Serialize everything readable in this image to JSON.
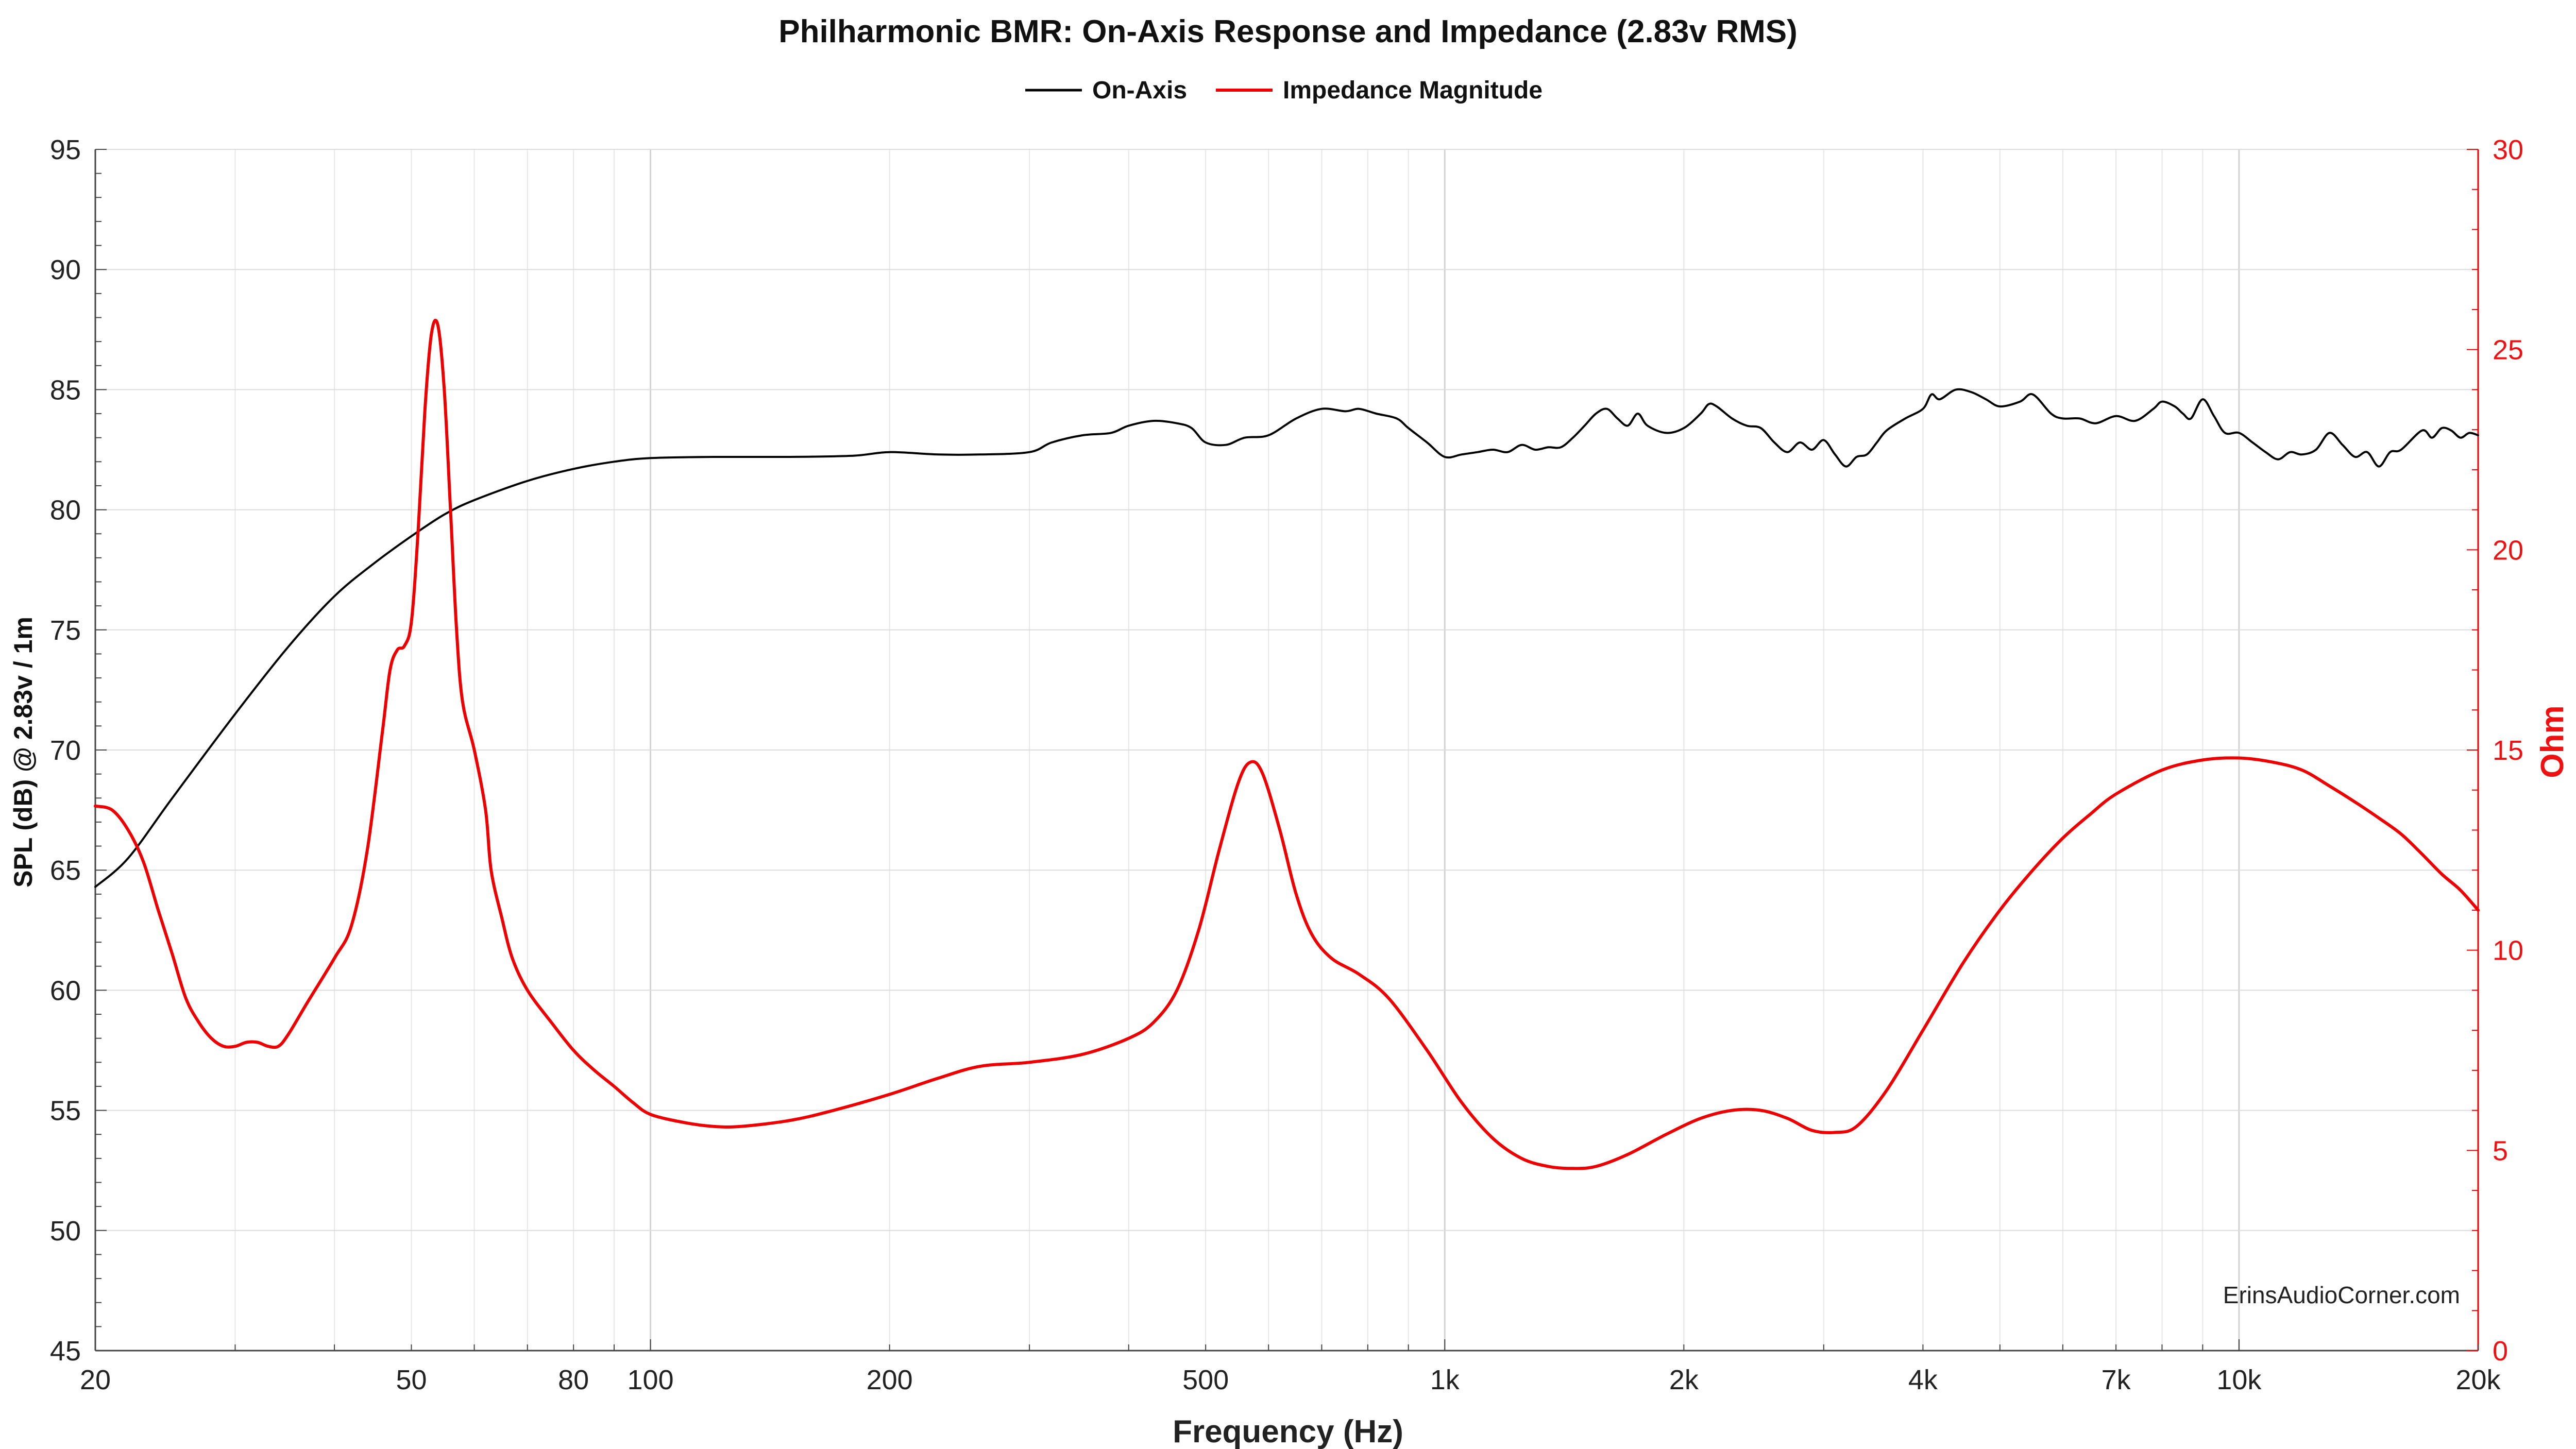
{
  "chart_data": {
    "type": "line",
    "title": "Philharmonic BMR: On-Axis Response and Impedance (2.83v RMS)",
    "xlabel": "Frequency (Hz)",
    "ylabel_left": "SPL (dB) @ 2.83v / 1m",
    "ylabel_right": "Ohm",
    "x_scale": "log",
    "xlim": [
      20,
      20000
    ],
    "ylim_left": [
      45,
      95
    ],
    "ylim_right": [
      0,
      30
    ],
    "x_ticks": [
      {
        "value": 20,
        "label": "20"
      },
      {
        "value": 50,
        "label": "50"
      },
      {
        "value": 80,
        "label": "80"
      },
      {
        "value": 100,
        "label": "100"
      },
      {
        "value": 200,
        "label": "200"
      },
      {
        "value": 500,
        "label": "500"
      },
      {
        "value": 1000,
        "label": "1k"
      },
      {
        "value": 2000,
        "label": "2k"
      },
      {
        "value": 4000,
        "label": "4k"
      },
      {
        "value": 7000,
        "label": "7k"
      },
      {
        "value": 10000,
        "label": "10k"
      },
      {
        "value": 20000,
        "label": "20k"
      }
    ],
    "y_ticks_left": [
      "95",
      "90",
      "85",
      "80",
      "75",
      "70",
      "65",
      "60",
      "55",
      "50",
      "45"
    ],
    "y_ticks_right": [
      "30",
      "25",
      "20",
      "15",
      "10",
      "5",
      "0"
    ],
    "grid": true,
    "legend_position": "top-center",
    "watermark": "ErinsAudioCorner.com",
    "series": [
      {
        "name": "On-Axis",
        "axis": "left",
        "color": "#000000",
        "points": [
          [
            20,
            64.3
          ],
          [
            22,
            65.5
          ],
          [
            25,
            68.0
          ],
          [
            30,
            71.5
          ],
          [
            35,
            74.3
          ],
          [
            40,
            76.4
          ],
          [
            45,
            77.8
          ],
          [
            50,
            78.9
          ],
          [
            55,
            79.8
          ],
          [
            60,
            80.4
          ],
          [
            70,
            81.2
          ],
          [
            80,
            81.7
          ],
          [
            90,
            82.0
          ],
          [
            100,
            82.15
          ],
          [
            120,
            82.2
          ],
          [
            150,
            82.2
          ],
          [
            180,
            82.25
          ],
          [
            200,
            82.4
          ],
          [
            230,
            82.3
          ],
          [
            260,
            82.3
          ],
          [
            300,
            82.4
          ],
          [
            320,
            82.8
          ],
          [
            350,
            83.1
          ],
          [
            380,
            83.2
          ],
          [
            400,
            83.5
          ],
          [
            430,
            83.7
          ],
          [
            460,
            83.6
          ],
          [
            480,
            83.4
          ],
          [
            500,
            82.8
          ],
          [
            530,
            82.7
          ],
          [
            560,
            83.0
          ],
          [
            600,
            83.1
          ],
          [
            650,
            83.8
          ],
          [
            700,
            84.2
          ],
          [
            750,
            84.1
          ],
          [
            780,
            84.2
          ],
          [
            820,
            84.0
          ],
          [
            870,
            83.8
          ],
          [
            900,
            83.4
          ],
          [
            950,
            82.8
          ],
          [
            1000,
            82.2
          ],
          [
            1050,
            82.3
          ],
          [
            1100,
            82.4
          ],
          [
            1150,
            82.5
          ],
          [
            1200,
            82.4
          ],
          [
            1250,
            82.7
          ],
          [
            1300,
            82.5
          ],
          [
            1350,
            82.6
          ],
          [
            1400,
            82.6
          ],
          [
            1450,
            83.0
          ],
          [
            1500,
            83.5
          ],
          [
            1550,
            84.0
          ],
          [
            1600,
            84.2
          ],
          [
            1650,
            83.8
          ],
          [
            1700,
            83.5
          ],
          [
            1750,
            84.0
          ],
          [
            1800,
            83.5
          ],
          [
            1900,
            83.2
          ],
          [
            2000,
            83.4
          ],
          [
            2100,
            84.0
          ],
          [
            2150,
            84.4
          ],
          [
            2200,
            84.3
          ],
          [
            2300,
            83.8
          ],
          [
            2400,
            83.5
          ],
          [
            2500,
            83.4
          ],
          [
            2600,
            82.8
          ],
          [
            2700,
            82.4
          ],
          [
            2800,
            82.8
          ],
          [
            2900,
            82.5
          ],
          [
            3000,
            82.9
          ],
          [
            3100,
            82.3
          ],
          [
            3200,
            81.8
          ],
          [
            3300,
            82.2
          ],
          [
            3400,
            82.3
          ],
          [
            3500,
            82.8
          ],
          [
            3600,
            83.3
          ],
          [
            3800,
            83.8
          ],
          [
            4000,
            84.2
          ],
          [
            4100,
            84.8
          ],
          [
            4200,
            84.6
          ],
          [
            4400,
            85.0
          ],
          [
            4600,
            84.9
          ],
          [
            4800,
            84.6
          ],
          [
            5000,
            84.3
          ],
          [
            5300,
            84.5
          ],
          [
            5500,
            84.8
          ],
          [
            5800,
            84.0
          ],
          [
            6000,
            83.8
          ],
          [
            6300,
            83.8
          ],
          [
            6600,
            83.6
          ],
          [
            7000,
            83.9
          ],
          [
            7400,
            83.7
          ],
          [
            7800,
            84.2
          ],
          [
            8000,
            84.5
          ],
          [
            8300,
            84.3
          ],
          [
            8500,
            84.0
          ],
          [
            8700,
            83.8
          ],
          [
            9000,
            84.6
          ],
          [
            9300,
            83.9
          ],
          [
            9600,
            83.2
          ],
          [
            10000,
            83.2
          ],
          [
            10400,
            82.8
          ],
          [
            10800,
            82.4
          ],
          [
            11200,
            82.1
          ],
          [
            11600,
            82.4
          ],
          [
            12000,
            82.3
          ],
          [
            12500,
            82.5
          ],
          [
            13000,
            83.2
          ],
          [
            13500,
            82.7
          ],
          [
            14000,
            82.2
          ],
          [
            14500,
            82.4
          ],
          [
            15000,
            81.8
          ],
          [
            15500,
            82.4
          ],
          [
            16000,
            82.5
          ],
          [
            17000,
            83.3
          ],
          [
            17500,
            83.0
          ],
          [
            18000,
            83.4
          ],
          [
            18500,
            83.3
          ],
          [
            19000,
            83.0
          ],
          [
            19500,
            83.2
          ],
          [
            20000,
            83.1
          ]
        ]
      },
      {
        "name": "Impedance Magnitude",
        "axis": "right",
        "color": "#ee0000",
        "points": [
          [
            20,
            13.6
          ],
          [
            21,
            13.5
          ],
          [
            22,
            13.0
          ],
          [
            23,
            12.2
          ],
          [
            24,
            11.0
          ],
          [
            25,
            9.9
          ],
          [
            26,
            8.8
          ],
          [
            27,
            8.2
          ],
          [
            28,
            7.8
          ],
          [
            29,
            7.6
          ],
          [
            30,
            7.6
          ],
          [
            31,
            7.7
          ],
          [
            32,
            7.7
          ],
          [
            33,
            7.6
          ],
          [
            34,
            7.6
          ],
          [
            35,
            7.9
          ],
          [
            37,
            8.7
          ],
          [
            40,
            9.8
          ],
          [
            42,
            10.6
          ],
          [
            44,
            12.5
          ],
          [
            46,
            15.5
          ],
          [
            47,
            17.0
          ],
          [
            48,
            17.5
          ],
          [
            49,
            17.6
          ],
          [
            50,
            18.2
          ],
          [
            51,
            20.5
          ],
          [
            52,
            23.5
          ],
          [
            53,
            25.4
          ],
          [
            54,
            25.6
          ],
          [
            55,
            24.0
          ],
          [
            56,
            21.0
          ],
          [
            57,
            18.0
          ],
          [
            58,
            16.2
          ],
          [
            60,
            15.0
          ],
          [
            62,
            13.5
          ],
          [
            63,
            12.0
          ],
          [
            65,
            10.8
          ],
          [
            67,
            9.8
          ],
          [
            70,
            9.0
          ],
          [
            75,
            8.2
          ],
          [
            80,
            7.5
          ],
          [
            85,
            7.0
          ],
          [
            90,
            6.6
          ],
          [
            95,
            6.2
          ],
          [
            100,
            5.9
          ],
          [
            110,
            5.7
          ],
          [
            120,
            5.6
          ],
          [
            130,
            5.6
          ],
          [
            150,
            5.75
          ],
          [
            170,
            6.0
          ],
          [
            200,
            6.4
          ],
          [
            230,
            6.8
          ],
          [
            260,
            7.1
          ],
          [
            300,
            7.2
          ],
          [
            350,
            7.4
          ],
          [
            400,
            7.8
          ],
          [
            430,
            8.2
          ],
          [
            460,
            9.0
          ],
          [
            490,
            10.5
          ],
          [
            520,
            12.5
          ],
          [
            550,
            14.2
          ],
          [
            570,
            14.7
          ],
          [
            590,
            14.4
          ],
          [
            620,
            13.0
          ],
          [
            650,
            11.4
          ],
          [
            680,
            10.4
          ],
          [
            720,
            9.8
          ],
          [
            780,
            9.4
          ],
          [
            850,
            8.8
          ],
          [
            950,
            7.5
          ],
          [
            1050,
            6.2
          ],
          [
            1150,
            5.3
          ],
          [
            1250,
            4.8
          ],
          [
            1350,
            4.6
          ],
          [
            1450,
            4.55
          ],
          [
            1550,
            4.6
          ],
          [
            1700,
            4.9
          ],
          [
            1900,
            5.4
          ],
          [
            2100,
            5.8
          ],
          [
            2300,
            6.0
          ],
          [
            2500,
            6.0
          ],
          [
            2700,
            5.8
          ],
          [
            2900,
            5.5
          ],
          [
            3100,
            5.45
          ],
          [
            3300,
            5.6
          ],
          [
            3600,
            6.5
          ],
          [
            4000,
            8.0
          ],
          [
            4500,
            9.7
          ],
          [
            5000,
            11.0
          ],
          [
            5500,
            12.0
          ],
          [
            6000,
            12.8
          ],
          [
            6500,
            13.4
          ],
          [
            7000,
            13.9
          ],
          [
            8000,
            14.5
          ],
          [
            9000,
            14.75
          ],
          [
            10000,
            14.8
          ],
          [
            11000,
            14.7
          ],
          [
            12000,
            14.5
          ],
          [
            13000,
            14.1
          ],
          [
            14000,
            13.7
          ],
          [
            15000,
            13.3
          ],
          [
            16000,
            12.9
          ],
          [
            17000,
            12.4
          ],
          [
            18000,
            11.9
          ],
          [
            19000,
            11.5
          ],
          [
            20000,
            11.0
          ]
        ]
      }
    ]
  }
}
